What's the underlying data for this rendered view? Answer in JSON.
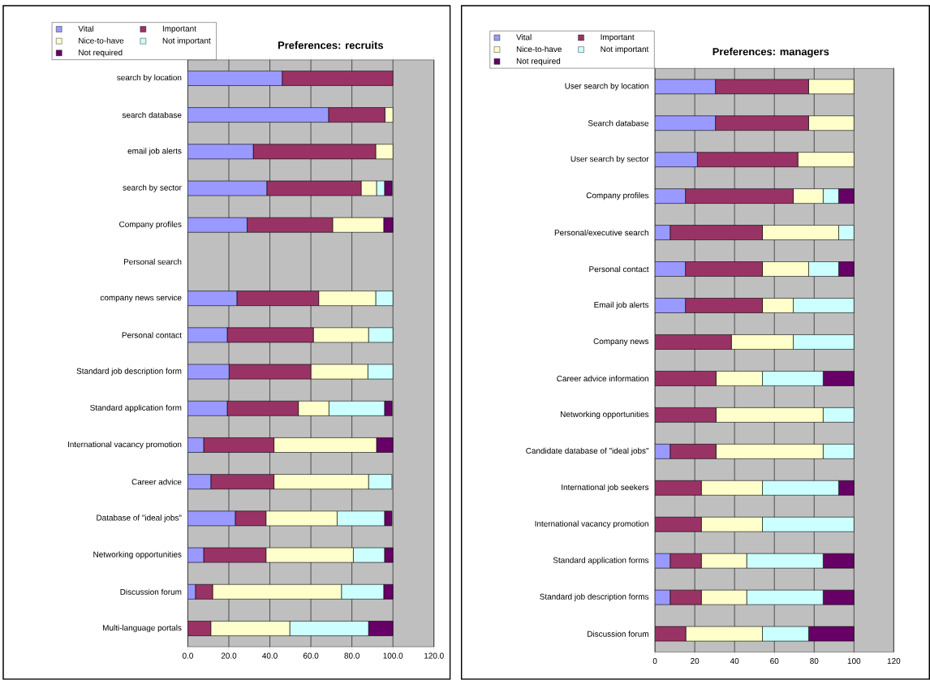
{
  "chart_data": [
    {
      "type": "bar",
      "orientation": "horizontal",
      "stacked": true,
      "title": "Preferences: recruits",
      "categories": [
        "search by location",
        "search database",
        "email job alerts",
        "search by sector",
        "Company profiles",
        "Personal search",
        "company news service",
        "Personal contact",
        "Standard job description form",
        "Standard application form",
        "International vacancy promotion",
        "Career advice",
        "Database of \"ideal jobs\"",
        "Networking opportunities",
        "Discussion forum",
        "Multi-language portals"
      ],
      "series": [
        {
          "name": "Vital",
          "color": "#9999ff",
          "values": [
            46,
            68.6,
            31.9,
            38.5,
            28.9,
            0,
            23.9,
            19.2,
            20.1,
            19.2,
            7.7,
            11.2,
            23.1,
            7.7,
            3.7,
            0
          ]
        },
        {
          "name": "Important",
          "color": "#993366",
          "values": [
            54,
            27.5,
            59.7,
            46,
            41.7,
            0,
            39.9,
            42,
            39.9,
            34.7,
            34.3,
            30.8,
            15,
            30.4,
            8.4,
            11.2
          ]
        },
        {
          "name": "Nice-to-have",
          "color": "#ffffcc",
          "values": [
            0,
            3.9,
            8.4,
            7.5,
            24.9,
            0,
            27.8,
            26.9,
            27.8,
            14.9,
            50,
            46.1,
            34.7,
            42.6,
            62.8,
            38.5
          ]
        },
        {
          "name": "Not important",
          "color": "#ccffff",
          "values": [
            0,
            0,
            0,
            3.9,
            0,
            0,
            8.4,
            11.9,
            12.2,
            27.1,
            0,
            11.4,
            23.1,
            15.2,
            20.6,
            38.4
          ]
        },
        {
          "name": "Not required",
          "color": "#660066",
          "values": [
            0,
            0,
            0,
            3.7,
            4.5,
            0,
            0,
            0,
            0,
            3.7,
            8,
            0,
            3.6,
            4.1,
            4.5,
            11.9
          ]
        }
      ],
      "xlim": [
        0,
        120
      ],
      "xticks": [
        {
          "value": 0,
          "label": "0.0"
        },
        {
          "value": 20,
          "label": "20.0"
        },
        {
          "value": 40,
          "label": "40.0"
        },
        {
          "value": 60,
          "label": "60.0"
        },
        {
          "value": 80,
          "label": "80.0"
        },
        {
          "value": 100,
          "label": "100.0"
        },
        {
          "value": 120,
          "label": "120.0"
        }
      ],
      "grid": "x",
      "legend": "top left"
    },
    {
      "type": "bar",
      "orientation": "horizontal",
      "stacked": true,
      "title": "Preferences: managers",
      "categories": [
        "User search by location",
        "Search database",
        "User search by sector",
        "Company profiles",
        "Personal/executive search",
        "Personal contact",
        "Email job alerts",
        "Company news",
        "Career advice information",
        "Networking opportunities",
        "Candidate database of \"ideal jobs\"",
        "International job seekers",
        "International vacancy promotion",
        "Standard application forms",
        "Standard job description forms",
        "Discussion forum"
      ],
      "series": [
        {
          "name": "Vital",
          "color": "#9999ff",
          "values": [
            30.4,
            30.4,
            21.3,
            15.3,
            7.6,
            15.3,
            15.3,
            0,
            0,
            0,
            7.6,
            0,
            0,
            7.6,
            7.6,
            0
          ]
        },
        {
          "name": "Important",
          "color": "#993366",
          "values": [
            46.8,
            46.8,
            50.5,
            54.2,
            46.4,
            38.7,
            38.7,
            38.4,
            30.7,
            30.7,
            23.1,
            23.3,
            23.3,
            15.7,
            15.7,
            15.5
          ]
        },
        {
          "name": "Nice-to-have",
          "color": "#ffffcc",
          "values": [
            22.8,
            22.8,
            28.2,
            15,
            38.3,
            23.2,
            15.5,
            31.1,
            23.3,
            53.8,
            53.8,
            30.7,
            30.7,
            22.8,
            22.8,
            38.5
          ]
        },
        {
          "name": "Not important",
          "color": "#ccffff",
          "values": [
            0,
            0,
            0,
            7.8,
            7.7,
            15.1,
            30.5,
            30.5,
            30.5,
            15.5,
            15.5,
            38.3,
            46,
            38.4,
            38.4,
            23.2
          ]
        },
        {
          "name": "Not required",
          "color": "#660066",
          "values": [
            0,
            0,
            0,
            7.7,
            0,
            7.7,
            0,
            0,
            15.5,
            0,
            0,
            7.7,
            0,
            15.5,
            15.5,
            22.8
          ]
        }
      ],
      "xlim": [
        0,
        120
      ],
      "xticks": [
        0,
        20,
        40,
        60,
        80,
        100,
        120
      ],
      "grid": "x",
      "legend": "top left"
    }
  ]
}
